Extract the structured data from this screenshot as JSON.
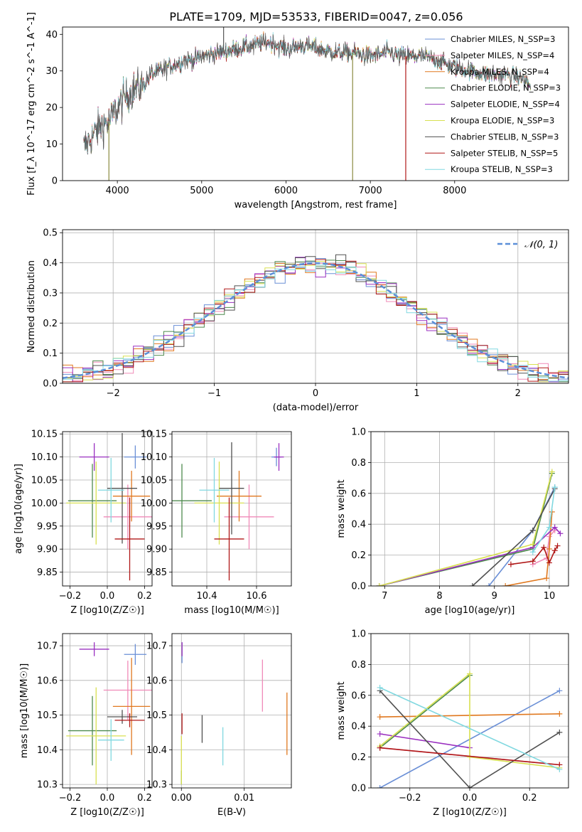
{
  "title": "PLATE=1709, MJD=53533, FIBERID=0047, z=0.056",
  "colors": {
    "Chabrier MILES": "#6a8fd6",
    "Salpeter MILES": "#f08ab8",
    "Kroupa MILES": "#e0781f",
    "Chabrier ELODIE": "#4e8a4e",
    "Salpeter ELODIE": "#9a30c0",
    "Kroupa ELODIE": "#d8e050",
    "Chabrier STELIB": "#505050",
    "Salpeter STELIB": "#b01818",
    "Kroupa STELIB": "#80d8e0"
  },
  "chart_data": [
    {
      "id": "spectrum",
      "type": "line",
      "title": "PLATE=1709, MJD=53533, FIBERID=0047, z=0.056",
      "xlabel": "wavelength [Angstrom, rest frame]",
      "ylabel": "Flux [f_λ 10^-17 erg cm^-2 s^-1 A^-1]",
      "xlim": [
        3350,
        9350
      ],
      "ylim": [
        0,
        42
      ],
      "xticks": [
        4000,
        5000,
        6000,
        7000,
        8000
      ],
      "yticks": [
        0,
        10,
        20,
        30,
        40
      ],
      "grid": false,
      "legend_position": "top-right",
      "legend": [
        "Chabrier MILES, N_SSP=3",
        "Salpeter MILES, N_SSP=4",
        "Kroupa MILES, N_SSP=4",
        "Chabrier ELODIE, N_SSP=3",
        "Salpeter ELODIE, N_SSP=4",
        "Kroupa ELODIE, N_SSP=3",
        "Chabrier STELIB, N_SSP=3",
        "Salpeter STELIB, N_SSP=5",
        "Kroupa STELIB, N_SSP=3"
      ],
      "continuum_x": [
        3600,
        3700,
        3800,
        3900,
        4000,
        4100,
        4200,
        4300,
        4400,
        4500,
        4600,
        4700,
        4800,
        4900,
        5000,
        5200,
        5400,
        5600,
        5800,
        6000,
        6200,
        6400,
        6600,
        6800,
        7000,
        7200,
        7400,
        7600,
        7800,
        8000,
        8200,
        8400,
        8600,
        8800,
        8900
      ],
      "continuum_y": [
        9,
        12,
        15,
        16,
        20,
        23,
        25,
        26,
        29,
        30,
        31,
        32,
        33,
        33,
        34,
        35,
        36,
        37,
        38,
        36,
        37,
        36,
        35,
        35,
        34,
        35,
        34,
        34,
        33,
        31,
        30,
        29,
        29,
        28,
        26
      ]
    },
    {
      "id": "residuals",
      "type": "histogram",
      "xlabel": "(data-model)/error",
      "ylabel": "Normed distribution",
      "xlim": [
        -2.5,
        2.5
      ],
      "ylim": [
        0,
        0.51
      ],
      "xticks": [
        -2,
        -1,
        0,
        1,
        2
      ],
      "yticks": [
        0.0,
        0.1,
        0.2,
        0.3,
        0.4,
        0.5
      ],
      "grid": true,
      "legend_position": "top-right",
      "reference_curve": "N(0,1)",
      "bin_width": 0.1,
      "bins_x0": -2.5
    },
    {
      "id": "Z-age",
      "type": "errorbar",
      "xlabel": "Z [log10(Z/Z☉)]",
      "ylabel": "age  [log10(age/yr)]",
      "xlim": [
        -0.24,
        0.24
      ],
      "ylim": [
        9.82,
        10.155
      ],
      "xticks": [
        -0.2,
        0.0,
        0.2
      ],
      "yticks": [
        9.85,
        9.9,
        9.95,
        10.0,
        10.05,
        10.1,
        10.15
      ],
      "grid": true,
      "points": [
        {
          "model": "Chabrier MILES",
          "x": 0.15,
          "y": 10.1,
          "xerr": 0.06,
          "yerr": 0.025
        },
        {
          "model": "Salpeter MILES",
          "x": 0.11,
          "y": 9.97,
          "xerr": 0.13,
          "yerr": 0.07
        },
        {
          "model": "Kroupa MILES",
          "x": 0.13,
          "y": 10.015,
          "xerr": 0.1,
          "yerr": 0.055
        },
        {
          "model": "Chabrier ELODIE",
          "x": -0.08,
          "y": 10.005,
          "xerr": 0.13,
          "yerr": 0.08
        },
        {
          "model": "Salpeter ELODIE",
          "x": -0.07,
          "y": 10.1,
          "xerr": 0.08,
          "yerr": 0.03
        },
        {
          "model": "Kroupa ELODIE",
          "x": -0.06,
          "y": 10.0,
          "xerr": 0.16,
          "yerr": 0.09
        },
        {
          "model": "Chabrier STELIB",
          "x": 0.08,
          "y": 10.032,
          "xerr": 0.08,
          "yerr": 0.12
        },
        {
          "model": "Salpeter STELIB",
          "x": 0.12,
          "y": 9.922,
          "xerr": 0.08,
          "yerr": 0.09
        },
        {
          "model": "Kroupa STELIB",
          "x": 0.02,
          "y": 10.028,
          "xerr": 0.07,
          "yerr": 0.07
        }
      ]
    },
    {
      "id": "mass-age",
      "type": "errorbar",
      "xlabel": "mass [log10(M/M☉)]",
      "ylabel": "",
      "xlim": [
        10.26,
        10.74
      ],
      "ylim": [
        9.82,
        10.155
      ],
      "xticks": [
        10.4,
        10.6
      ],
      "yticks": [
        9.85,
        9.9,
        9.95,
        10.0,
        10.05,
        10.1,
        10.15
      ],
      "grid": true,
      "points": [
        {
          "model": "Chabrier MILES",
          "x": 10.68,
          "y": 10.1,
          "xerr": 0.02,
          "yerr": 0.02
        },
        {
          "model": "Salpeter MILES",
          "x": 10.57,
          "y": 9.97,
          "xerr": 0.1,
          "yerr": 0.07
        },
        {
          "model": "Kroupa MILES",
          "x": 10.53,
          "y": 10.015,
          "xerr": 0.09,
          "yerr": 0.055
        },
        {
          "model": "Chabrier ELODIE",
          "x": 10.3,
          "y": 10.005,
          "xerr": 0.12,
          "yerr": 0.08
        },
        {
          "model": "Salpeter ELODIE",
          "x": 10.69,
          "y": 10.1,
          "xerr": 0.02,
          "yerr": 0.03
        },
        {
          "model": "Kroupa ELODIE",
          "x": 10.45,
          "y": 10.0,
          "xerr": 0.1,
          "yerr": 0.09
        },
        {
          "model": "Chabrier STELIB",
          "x": 10.5,
          "y": 10.032,
          "xerr": 0.05,
          "yerr": 0.1
        },
        {
          "model": "Salpeter STELIB",
          "x": 10.49,
          "y": 9.922,
          "xerr": 0.06,
          "yerr": 0.09
        },
        {
          "model": "Kroupa STELIB",
          "x": 10.43,
          "y": 10.028,
          "xerr": 0.06,
          "yerr": 0.07
        }
      ]
    },
    {
      "id": "age-weight",
      "type": "line",
      "xlabel": "age  [log10(age/yr)]",
      "ylabel": "mass weight",
      "xlim": [
        6.75,
        10.35
      ],
      "ylim": [
        0.0,
        1.0
      ],
      "xticks": [
        7,
        8,
        9,
        10
      ],
      "yticks": [
        0.0,
        0.2,
        0.4,
        0.6,
        0.8,
        1.0
      ],
      "grid": true,
      "series": [
        {
          "model": "Chabrier MILES",
          "x": [
            8.9,
            9.7,
            10.1
          ],
          "y": [
            0.0,
            0.36,
            0.64
          ]
        },
        {
          "model": "Salpeter MILES",
          "x": [
            9.7,
            9.95,
            10.0,
            10.1
          ],
          "y": [
            0.14,
            0.18,
            0.32,
            0.36
          ]
        },
        {
          "model": "Kroupa MILES",
          "x": [
            9.2,
            9.95,
            10.0,
            10.05
          ],
          "y": [
            0.0,
            0.05,
            0.24,
            0.48
          ]
        },
        {
          "model": "Chabrier ELODIE",
          "x": [
            6.9,
            9.7,
            10.05
          ],
          "y": [
            0.0,
            0.24,
            0.73
          ]
        },
        {
          "model": "Salpeter ELODIE",
          "x": [
            6.9,
            9.7,
            10.1,
            10.2
          ],
          "y": [
            0.0,
            0.25,
            0.38,
            0.34
          ]
        },
        {
          "model": "Kroupa ELODIE",
          "x": [
            6.9,
            9.7,
            10.05
          ],
          "y": [
            0.0,
            0.27,
            0.74
          ]
        },
        {
          "model": "Chabrier STELIB",
          "x": [
            8.6,
            9.7,
            10.1
          ],
          "y": [
            0.0,
            0.36,
            0.63
          ]
        },
        {
          "model": "Salpeter STELIB",
          "x": [
            9.3,
            9.7,
            9.9,
            10.0,
            10.1,
            10.15
          ],
          "y": [
            0.14,
            0.16,
            0.25,
            0.15,
            0.23,
            0.26
          ]
        },
        {
          "model": "Kroupa STELIB",
          "x": [
            9.7,
            10.0,
            10.1
          ],
          "y": [
            0.22,
            0.38,
            0.64
          ]
        }
      ]
    },
    {
      "id": "Z-mass",
      "type": "errorbar",
      "xlabel": "Z [log10(Z/Z☉)]",
      "ylabel": "mass [log10(M/M☉)]",
      "xlim": [
        -0.24,
        0.24
      ],
      "ylim": [
        10.29,
        10.735
      ],
      "xticks": [
        -0.2,
        0.0,
        0.2
      ],
      "yticks": [
        10.3,
        10.4,
        10.5,
        10.6,
        10.7
      ],
      "grid": true,
      "points": [
        {
          "model": "Chabrier MILES",
          "x": 0.15,
          "y": 10.675,
          "xerr": 0.06,
          "yerr": 0.03
        },
        {
          "model": "Salpeter MILES",
          "x": 0.11,
          "y": 10.572,
          "xerr": 0.13,
          "yerr": 0.085
        },
        {
          "model": "Kroupa MILES",
          "x": 0.13,
          "y": 10.525,
          "xerr": 0.1,
          "yerr": 0.14
        },
        {
          "model": "Chabrier ELODIE",
          "x": -0.08,
          "y": 10.455,
          "xerr": 0.13,
          "yerr": 0.1
        },
        {
          "model": "Salpeter ELODIE",
          "x": -0.07,
          "y": 10.69,
          "xerr": 0.08,
          "yerr": 0.02
        },
        {
          "model": "Kroupa ELODIE",
          "x": -0.06,
          "y": 10.44,
          "xerr": 0.16,
          "yerr": 0.14
        },
        {
          "model": "Chabrier STELIB",
          "x": 0.08,
          "y": 10.495,
          "xerr": 0.08,
          "yerr": 0.02
        },
        {
          "model": "Salpeter STELIB",
          "x": 0.12,
          "y": 10.485,
          "xerr": 0.08,
          "yerr": 0.02
        },
        {
          "model": "Kroupa STELIB",
          "x": 0.02,
          "y": 10.428,
          "xerr": 0.07,
          "yerr": 0.06
        }
      ]
    },
    {
      "id": "ebv-mass",
      "type": "errorbar",
      "xlabel": "E(B-V)",
      "ylabel": "",
      "xlim": [
        -0.0015,
        0.0175
      ],
      "ylim": [
        10.29,
        10.735
      ],
      "xticks": [
        0.0,
        0.01
      ],
      "xticklabels": [
        "0.00",
        "0.01"
      ],
      "yticks": [
        10.3,
        10.4,
        10.5,
        10.6,
        10.7
      ],
      "grid": true,
      "points": [
        {
          "model": "Chabrier MILES",
          "x": 0.0001,
          "y": 10.68,
          "xerr": 0,
          "yerr": 0.03
        },
        {
          "model": "Salpeter MILES",
          "x": 0.0129,
          "y": 10.585,
          "xerr": 0,
          "yerr": 0.075
        },
        {
          "model": "Kroupa MILES",
          "x": 0.0168,
          "y": 10.475,
          "xerr": 0,
          "yerr": 0.09
        },
        {
          "model": "Chabrier ELODIE",
          "x": 0.0,
          "y": 10.32,
          "xerr": 0,
          "yerr": 0.02
        },
        {
          "model": "Salpeter ELODIE",
          "x": 0.0001,
          "y": 10.69,
          "xerr": 0,
          "yerr": 0.02
        },
        {
          "model": "Kroupa ELODIE",
          "x": 0.0,
          "y": 10.37,
          "xerr": 0,
          "yerr": 0.07
        },
        {
          "model": "Chabrier STELIB",
          "x": 0.0033,
          "y": 10.46,
          "xerr": 0,
          "yerr": 0.04
        },
        {
          "model": "Salpeter STELIB",
          "x": 0.0001,
          "y": 10.475,
          "xerr": 0,
          "yerr": 0.03
        },
        {
          "model": "Kroupa STELIB",
          "x": 0.0066,
          "y": 10.41,
          "xerr": 0,
          "yerr": 0.055
        }
      ]
    },
    {
      "id": "Z-weight",
      "type": "line",
      "xlabel": "Z [log10(Z/Z☉)]",
      "ylabel": "mass weight",
      "xlim": [
        -0.33,
        0.33
      ],
      "ylim": [
        0.0,
        1.0
      ],
      "xticks": [
        -0.2,
        0.0,
        0.2
      ],
      "yticks": [
        0.0,
        0.2,
        0.4,
        0.6,
        0.8,
        1.0
      ],
      "grid": true,
      "series": [
        {
          "model": "Chabrier MILES",
          "x": [
            -0.3,
            0.3
          ],
          "y": [
            0.0,
            0.63
          ]
        },
        {
          "model": "Salpeter MILES",
          "x": [
            -0.3,
            0.3
          ],
          "y": [
            0.26,
            0.15
          ]
        },
        {
          "model": "Kroupa MILES",
          "x": [
            -0.3,
            0.3
          ],
          "y": [
            0.46,
            0.48
          ]
        },
        {
          "model": "Chabrier ELODIE",
          "x": [
            -0.3,
            0.0
          ],
          "y": [
            0.26,
            0.73
          ]
        },
        {
          "model": "Salpeter ELODIE",
          "x": [
            -0.3,
            0.0
          ],
          "y": [
            0.35,
            0.26
          ]
        },
        {
          "model": "Kroupa ELODIE",
          "x": [
            -0.3,
            0.0,
            0.0,
            0.3
          ],
          "y": [
            0.27,
            0.74,
            0.2,
            0.13
          ]
        },
        {
          "model": "Chabrier STELIB",
          "x": [
            -0.3,
            0.0,
            0.3
          ],
          "y": [
            0.63,
            0.0,
            0.36
          ]
        },
        {
          "model": "Salpeter STELIB",
          "x": [
            -0.3,
            0.3
          ],
          "y": [
            0.26,
            0.15
          ]
        },
        {
          "model": "Kroupa STELIB",
          "x": [
            -0.3,
            0.3
          ],
          "y": [
            0.65,
            0.12
          ]
        }
      ]
    }
  ]
}
